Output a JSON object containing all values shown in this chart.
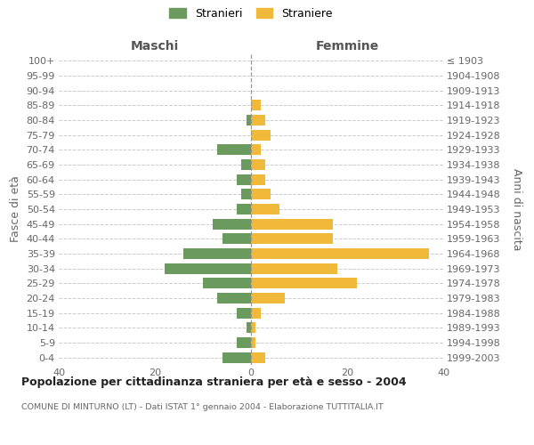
{
  "age_groups": [
    "100+",
    "95-99",
    "90-94",
    "85-89",
    "80-84",
    "75-79",
    "70-74",
    "65-69",
    "60-64",
    "55-59",
    "50-54",
    "45-49",
    "40-44",
    "35-39",
    "30-34",
    "25-29",
    "20-24",
    "15-19",
    "10-14",
    "5-9",
    "0-4"
  ],
  "birth_years": [
    "≤ 1903",
    "1904-1908",
    "1909-1913",
    "1914-1918",
    "1919-1923",
    "1924-1928",
    "1929-1933",
    "1934-1938",
    "1939-1943",
    "1944-1948",
    "1949-1953",
    "1954-1958",
    "1959-1963",
    "1964-1968",
    "1969-1973",
    "1974-1978",
    "1979-1983",
    "1984-1988",
    "1989-1993",
    "1994-1998",
    "1999-2003"
  ],
  "maschi": [
    0,
    0,
    0,
    0,
    1,
    0,
    7,
    2,
    3,
    2,
    3,
    8,
    6,
    14,
    18,
    10,
    7,
    3,
    1,
    3,
    6
  ],
  "femmine": [
    0,
    0,
    0,
    2,
    3,
    4,
    2,
    3,
    3,
    4,
    6,
    17,
    17,
    37,
    18,
    22,
    7,
    2,
    1,
    1,
    3
  ],
  "color_maschi": "#6b9a5e",
  "color_femmine": "#f0b93a",
  "xlim": 40,
  "title": "Popolazione per cittadinanza straniera per età e sesso - 2004",
  "subtitle": "COMUNE DI MINTURNO (LT) - Dati ISTAT 1° gennaio 2004 - Elaborazione TUTTITALIA.IT",
  "ylabel_left": "Fasce di età",
  "ylabel_right": "Anni di nascita",
  "header_left": "Maschi",
  "header_right": "Femmine",
  "legend_maschi": "Stranieri",
  "legend_femmine": "Straniere",
  "bg_color": "#ffffff",
  "grid_color": "#cccccc",
  "bar_height": 0.72
}
